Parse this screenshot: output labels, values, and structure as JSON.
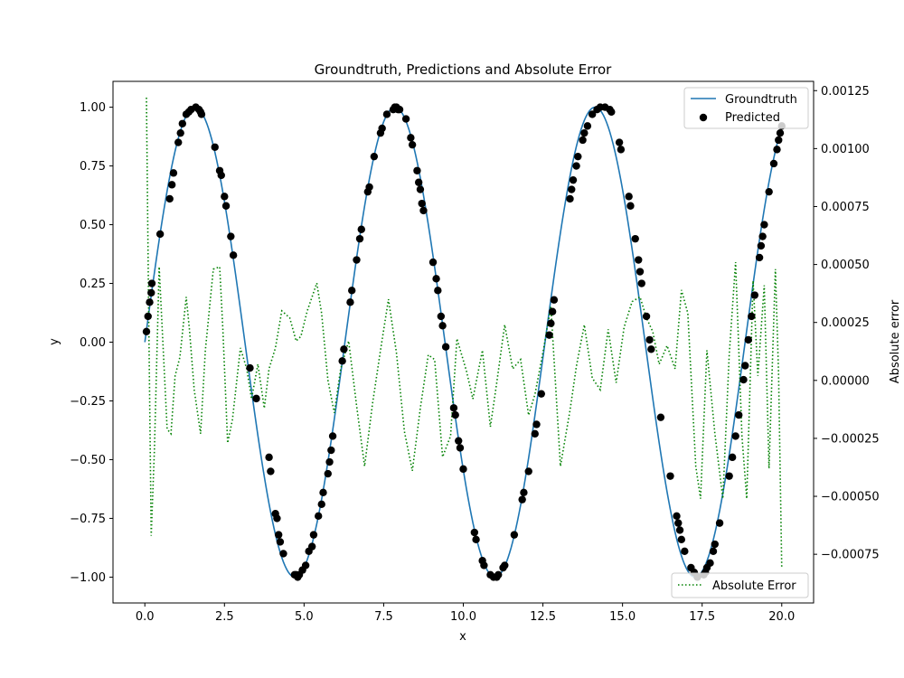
{
  "chart_data": {
    "type": "line",
    "title": "Groundtruth, Predictions and Absolute Error",
    "xlabel": "x",
    "ylabel": "y",
    "y2label": "Absolute error",
    "xlim": [
      -1.0,
      21.0
    ],
    "ylim": [
      -1.11,
      1.11
    ],
    "y2lim": [
      -0.00096,
      0.00129
    ],
    "xticks": [
      0.0,
      2.5,
      5.0,
      7.5,
      10.0,
      12.5,
      15.0,
      17.5,
      20.0
    ],
    "xtick_labels": [
      "0.0",
      "2.5",
      "5.0",
      "7.5",
      "10.0",
      "12.5",
      "15.0",
      "17.5",
      "20.0"
    ],
    "yticks": [
      -1.0,
      -0.75,
      -0.5,
      -0.25,
      0.0,
      0.25,
      0.5,
      0.75,
      1.0
    ],
    "ytick_labels": [
      "−1.00",
      "−0.75",
      "−0.50",
      "−0.25",
      "0.00",
      "0.25",
      "0.50",
      "0.75",
      "1.00"
    ],
    "y2ticks": [
      -0.00075,
      -0.0005,
      -0.00025,
      0.0,
      0.00025,
      0.0005,
      0.00075,
      0.001,
      0.00125
    ],
    "y2tick_labels": [
      "−0.00075",
      "−0.00050",
      "−0.00025",
      "0.00000",
      "0.00025",
      "0.00050",
      "0.00075",
      "0.00100",
      "0.00125"
    ],
    "grid": false,
    "legend_upper": {
      "placement": "upper-right",
      "entries": [
        "Groundtruth",
        "Predicted"
      ]
    },
    "legend_lower": {
      "placement": "lower-right",
      "entries": [
        "Absolute Error"
      ]
    },
    "series": [
      {
        "name": "Groundtruth",
        "kind": "line",
        "color": "#1f77b4",
        "function": "sin",
        "x_range": [
          0,
          20
        ],
        "samples": 400
      },
      {
        "name": "Predicted",
        "kind": "scatter",
        "color": "#000000",
        "x": [
          0.05,
          0.1,
          0.15,
          0.2,
          0.22,
          0.48,
          0.78,
          0.85,
          0.9,
          1.05,
          1.12,
          1.18,
          1.3,
          1.38,
          1.45,
          1.6,
          1.7,
          1.75,
          1.78,
          2.2,
          2.35,
          2.4,
          2.5,
          2.55,
          2.7,
          2.78,
          3.3,
          3.5,
          3.9,
          3.95,
          4.1,
          4.15,
          4.2,
          4.25,
          4.35,
          4.7,
          4.75,
          4.8,
          4.85,
          4.95,
          5.05,
          5.15,
          5.25,
          5.3,
          5.45,
          5.55,
          5.6,
          5.75,
          5.8,
          5.85,
          5.9,
          6.2,
          6.25,
          6.45,
          6.5,
          6.65,
          6.75,
          6.8,
          7.0,
          7.05,
          7.2,
          7.4,
          7.45,
          7.6,
          7.8,
          7.85,
          7.9,
          7.95,
          8.0,
          8.2,
          8.35,
          8.4,
          8.55,
          8.6,
          8.65,
          8.7,
          8.75,
          9.05,
          9.15,
          9.2,
          9.3,
          9.35,
          9.45,
          9.7,
          9.75,
          9.85,
          9.9,
          10.0,
          10.35,
          10.4,
          10.6,
          10.65,
          10.85,
          10.95,
          11.05,
          11.1,
          11.25,
          11.3,
          11.6,
          11.85,
          11.9,
          12.05,
          12.25,
          12.3,
          12.45,
          12.7,
          12.75,
          12.8,
          12.85,
          13.35,
          13.4,
          13.45,
          13.55,
          13.6,
          13.75,
          13.8,
          13.9,
          14.05,
          14.2,
          14.3,
          14.45,
          14.6,
          14.65,
          14.9,
          14.95,
          15.2,
          15.25,
          15.4,
          15.5,
          15.55,
          15.6,
          15.75,
          15.85,
          15.9,
          16.2,
          16.5,
          16.7,
          16.75,
          16.8,
          16.85,
          16.95,
          17.15,
          17.25,
          17.35,
          17.55,
          17.6,
          17.65,
          17.75,
          17.85,
          17.9,
          18.05,
          18.35,
          18.45,
          18.55,
          18.65,
          18.8,
          18.85,
          18.95,
          19.05,
          19.15,
          19.3,
          19.35,
          19.4,
          19.45,
          19.6,
          19.75,
          19.85,
          19.9,
          19.95,
          20.0
        ],
        "y": [
          0.045,
          0.11,
          0.17,
          0.21,
          0.25,
          0.46,
          0.61,
          0.67,
          0.72,
          0.85,
          0.89,
          0.93,
          0.97,
          0.98,
          0.99,
          1.0,
          0.99,
          0.98,
          0.97,
          0.83,
          0.73,
          0.71,
          0.62,
          0.58,
          0.45,
          0.37,
          -0.11,
          -0.24,
          -0.49,
          -0.55,
          -0.73,
          -0.75,
          -0.82,
          -0.85,
          -0.9,
          -0.99,
          -0.99,
          -1.0,
          -0.99,
          -0.97,
          -0.95,
          -0.89,
          -0.87,
          -0.82,
          -0.74,
          -0.69,
          -0.64,
          -0.56,
          -0.51,
          -0.46,
          -0.4,
          -0.08,
          -0.03,
          0.17,
          0.22,
          0.35,
          0.44,
          0.48,
          0.64,
          0.66,
          0.79,
          0.89,
          0.91,
          0.97,
          0.99,
          1.0,
          1.0,
          0.99,
          0.99,
          0.95,
          0.87,
          0.84,
          0.73,
          0.68,
          0.65,
          0.59,
          0.56,
          0.34,
          0.27,
          0.22,
          0.11,
          0.07,
          -0.02,
          -0.28,
          -0.31,
          -0.42,
          -0.45,
          -0.54,
          -0.81,
          -0.84,
          -0.93,
          -0.95,
          -0.99,
          -1.0,
          -1.0,
          -0.99,
          -0.96,
          -0.95,
          -0.82,
          -0.67,
          -0.64,
          -0.55,
          -0.39,
          -0.35,
          -0.22,
          0.03,
          0.08,
          0.13,
          0.18,
          0.61,
          0.65,
          0.69,
          0.75,
          0.79,
          0.86,
          0.89,
          0.92,
          0.97,
          0.99,
          1.0,
          1.0,
          0.99,
          0.98,
          0.85,
          0.82,
          0.62,
          0.58,
          0.44,
          0.35,
          0.3,
          0.25,
          0.11,
          0.01,
          -0.03,
          -0.32,
          -0.57,
          -0.74,
          -0.77,
          -0.8,
          -0.84,
          -0.89,
          -0.96,
          -0.98,
          -1.0,
          -0.99,
          -0.98,
          -0.96,
          -0.94,
          -0.89,
          -0.86,
          -0.77,
          -0.57,
          -0.49,
          -0.4,
          -0.31,
          -0.16,
          -0.1,
          0.01,
          0.11,
          0.2,
          0.36,
          0.41,
          0.45,
          0.5,
          0.64,
          0.76,
          0.82,
          0.86,
          0.89,
          0.92
        ]
      },
      {
        "name": "Absolute Error",
        "kind": "line",
        "axis": "right",
        "color": "#008000",
        "dash": "dotted",
        "x": [
          0.05,
          0.12,
          0.2,
          0.3,
          0.45,
          0.55,
          0.7,
          0.82,
          0.95,
          1.1,
          1.3,
          1.4,
          1.55,
          1.75,
          1.9,
          2.15,
          2.35,
          2.45,
          2.6,
          2.75,
          3.0,
          3.2,
          3.35,
          3.55,
          3.75,
          3.9,
          4.1,
          4.3,
          4.55,
          4.75,
          4.9,
          5.1,
          5.4,
          5.55,
          5.75,
          5.95,
          6.15,
          6.4,
          6.65,
          6.9,
          7.15,
          7.4,
          7.65,
          7.9,
          8.15,
          8.4,
          8.65,
          8.9,
          9.1,
          9.35,
          9.6,
          9.8,
          10.1,
          10.3,
          10.6,
          10.85,
          11.05,
          11.3,
          11.55,
          11.8,
          12.05,
          12.25,
          12.5,
          12.75,
          13.05,
          13.35,
          13.55,
          13.8,
          14.05,
          14.3,
          14.55,
          14.8,
          15.05,
          15.3,
          15.55,
          15.75,
          15.95,
          16.15,
          16.4,
          16.65,
          16.85,
          17.05,
          17.3,
          17.45,
          17.65,
          17.9,
          18.15,
          18.35,
          18.55,
          18.75,
          18.9,
          19.1,
          19.25,
          19.45,
          19.6,
          19.8,
          19.9,
          20.0
        ],
        "y": [
          0.00122,
          0.0003,
          -0.00067,
          -0.0003,
          0.00049,
          0.00021,
          -0.00021,
          -0.00023,
          2e-05,
          0.0001,
          0.00036,
          0.00022,
          -4e-05,
          -0.00023,
          0.00013,
          0.00048,
          0.00049,
          0.00022,
          -0.00027,
          -0.00017,
          0.00014,
          5e-05,
          -8e-05,
          7e-05,
          -0.00012,
          5e-05,
          0.00014,
          0.0003,
          0.00027,
          0.00017,
          0.00019,
          0.0003,
          0.00042,
          0.00029,
          0.0,
          -0.00014,
          5e-05,
          0.00017,
          -0.00011,
          -0.00037,
          -0.0001,
          0.00013,
          0.00035,
          0.00012,
          -0.00022,
          -0.00039,
          -0.00012,
          0.00011,
          9e-05,
          -0.00033,
          -0.00024,
          0.00018,
          4e-05,
          -8e-05,
          0.00013,
          -0.0002,
          -1e-05,
          0.00024,
          5e-05,
          9e-05,
          -0.00015,
          -6e-05,
          0.00012,
          0.00032,
          -0.00037,
          -0.00013,
          6e-05,
          0.00024,
          1e-05,
          -4e-05,
          0.00022,
          -1e-05,
          0.00023,
          0.00034,
          0.00036,
          0.00027,
          0.00021,
          7e-05,
          0.00015,
          5e-05,
          0.00039,
          0.00029,
          -0.00037,
          -0.00051,
          0.00013,
          -0.00023,
          -0.00051,
          0.00011,
          0.00051,
          -0.00024,
          -0.00051,
          0.00043,
          2e-05,
          0.00041,
          -0.00038,
          0.00048,
          3e-05,
          -0.00081
        ]
      }
    ]
  }
}
